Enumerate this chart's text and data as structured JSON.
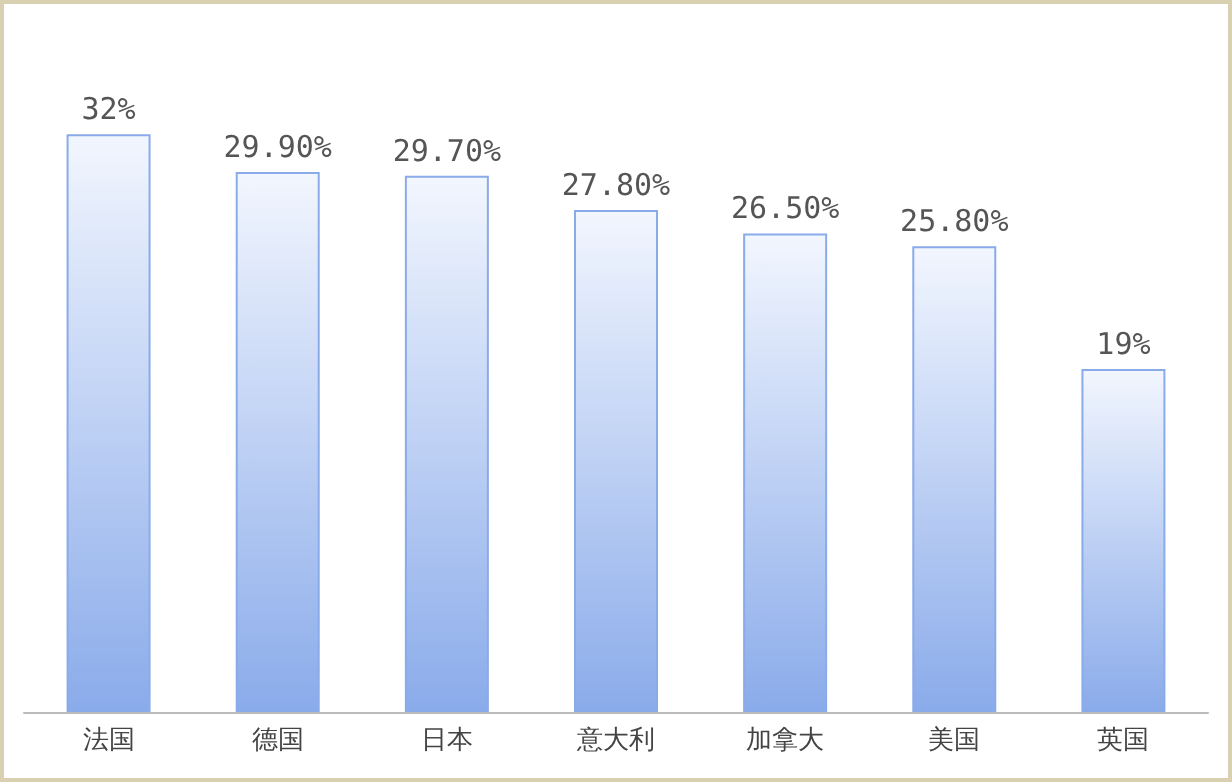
{
  "chart_data": {
    "type": "bar",
    "categories": [
      "法国",
      "德国",
      "日本",
      "意大利",
      "加拿大",
      "美国",
      "英国"
    ],
    "values": [
      32,
      29.9,
      29.7,
      27.8,
      26.5,
      25.8,
      19
    ],
    "value_labels": [
      "32%",
      "29.90%",
      "29.70%",
      "27.80%",
      "26.50%",
      "25.80%",
      "19%"
    ],
    "color": "#8aabea"
  }
}
